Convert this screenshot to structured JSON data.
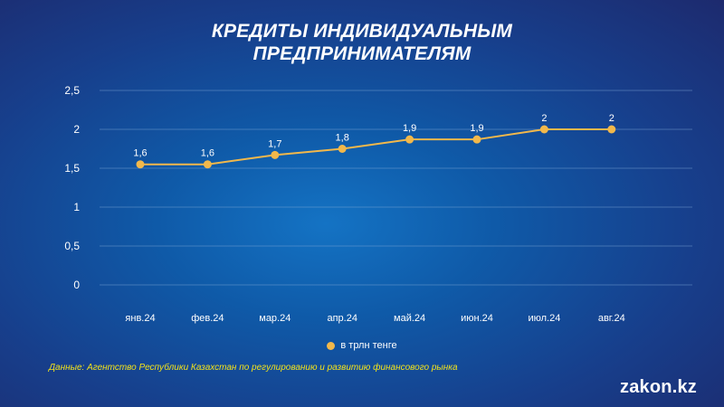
{
  "title_line1": "КРЕДИТЫ ИНДИВИДУАЛЬНЫМ",
  "title_line2": "ПРЕДПРИНИМАТЕЛЯМ",
  "source_note": "Данные: Агентство Республики Казахстан по регулированию и развитию финансового рынка",
  "logo": "zakon.kz",
  "colors": {
    "series": "#f2b84b",
    "line": "#f2b84b",
    "grid": "#7fa6d6",
    "source": "#f2e21a",
    "text": "#ffffff"
  },
  "chart_data": {
    "type": "line",
    "categories": [
      "янв.24",
      "фев.24",
      "мар.24",
      "апр.24",
      "май.24",
      "июн.24",
      "июл.24",
      "авг.24"
    ],
    "series": [
      {
        "name": "в трлн тенге",
        "values": [
          1.55,
          1.55,
          1.67,
          1.75,
          1.87,
          1.87,
          2.0,
          2.0
        ],
        "labels": [
          "1,6",
          "1,6",
          "1,7",
          "1,8",
          "1,9",
          "1,9",
          "2",
          "2"
        ]
      }
    ],
    "ylim": [
      0,
      2.5
    ],
    "yticks": [
      0,
      0.5,
      1,
      1.5,
      2,
      2.5
    ],
    "ytick_labels": [
      "0",
      "0,5",
      "1",
      "1,5",
      "2",
      "2,5"
    ],
    "grid": true,
    "legend_position": "bottom-center"
  }
}
